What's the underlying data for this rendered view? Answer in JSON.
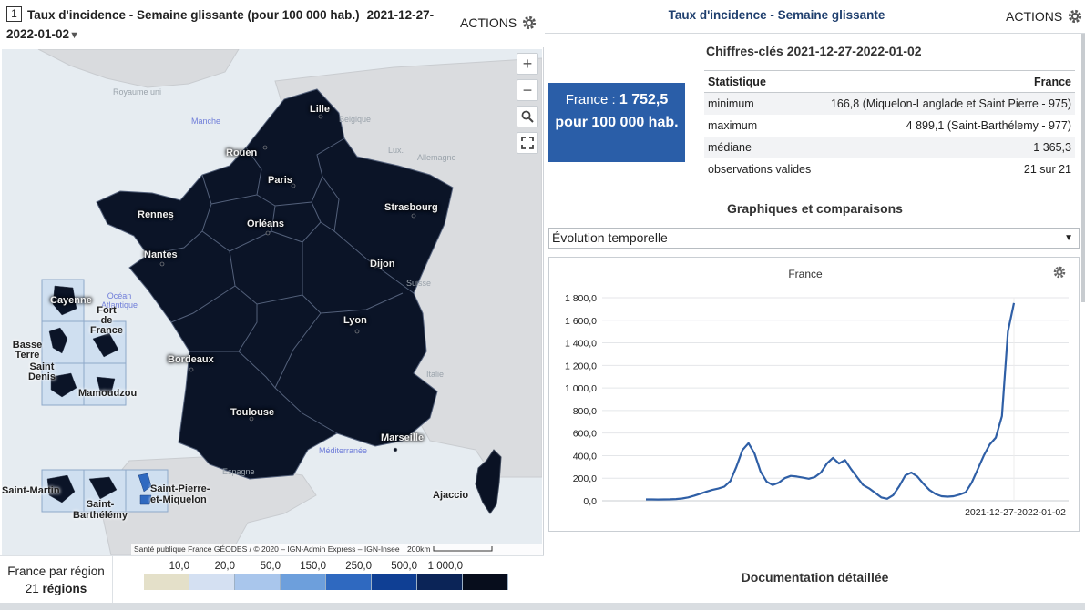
{
  "map_panel": {
    "number": "1",
    "title": "Taux d'incidence - Semaine glissante (pour 100 000 hab.)",
    "period_part1": "2021-12-27-",
    "period_part2": "2022-01-02",
    "period_arrow": "▼",
    "actions_label": "ACTIONS",
    "zoom_in": "+",
    "zoom_out": "−",
    "search_icon": "search-icon",
    "fullscreen_icon": "fullscreen-icon",
    "attribution": "Santé publique France GÉODES / © 2020 – IGN-Admin Express – IGN-Insee",
    "scale_label": "200km",
    "cities": {
      "lille": "Lille",
      "rouen": "Rouen",
      "paris": "Paris",
      "strasbourg": "Strasbourg",
      "rennes": "Rennes",
      "orleans": "Orléans",
      "nantes": "Nantes",
      "dijon": "Dijon",
      "lyon": "Lyon",
      "bordeaux": "Bordeaux",
      "toulouse": "Toulouse",
      "marseille": "Marseille",
      "ajaccio": "Ajaccio",
      "cayenne": "Cayenne",
      "fort_de_france": "Fort\nde\nFrance",
      "basse_terre": "Basse\nTerre",
      "saint_denis": "Saint\nDenis",
      "mamoudzou": "Mamoudzou",
      "saint_martin": "Saint-Martin",
      "saint_barthelemy": "Saint-\nBarthélémy",
      "saint_pierre": "Saint-Pierre-\net-Miquelon"
    },
    "geo_labels": {
      "royaume_uni": "Royaume uni",
      "belgique": "Belgique",
      "lux": "Lux.",
      "allemagne": "Allemagne",
      "suisse": "Suisse",
      "italie": "Italie",
      "espagne": "Espagne"
    },
    "sea_labels": {
      "manche": "Manche",
      "ocean": "Océan\nAtlantique",
      "mediterranee": "Méditerranée"
    },
    "legend": {
      "title": "France par région",
      "count": "21",
      "count_unit": "régions",
      "ticks": [
        "10,0",
        "20,0",
        "50,0",
        "150,0",
        "250,0",
        "500,0",
        "1 000,0"
      ],
      "colors": [
        "#e4e0c9",
        "#d4e0f2",
        "#a9c6ec",
        "#6d9fdc",
        "#2f69c0",
        "#0f3f94",
        "#0b2457",
        "#070d1c"
      ]
    }
  },
  "right_panel": {
    "title": "Taux d'incidence - Semaine glissante",
    "actions_label": "ACTIONS",
    "key_figures_title": "Chiffres-clés 2021-12-27-2022-01-02",
    "headline": {
      "prefix": "France : ",
      "value": "1 752,5",
      "unit": "pour 100 000 hab."
    },
    "stats": {
      "header": [
        "Statistique",
        "France"
      ],
      "rows": [
        {
          "label": "minimum",
          "value": "166,8 (Miquelon-Langlade et Saint Pierre - 975)"
        },
        {
          "label": "maximum",
          "value": "4 899,1 (Saint-Barthélemy - 977)"
        },
        {
          "label": "médiane",
          "value": "1 365,3"
        },
        {
          "label": "observations valides",
          "value": "21 sur 21"
        }
      ]
    },
    "graphs_title": "Graphiques et comparaisons",
    "select_value": "Évolution temporelle",
    "documentation_title": "Documentation détaillée"
  },
  "chart_data": {
    "type": "line",
    "title": "France",
    "x_label_end": "2021-12-27-2022-01-02",
    "ylim": [
      0,
      1800
    ],
    "yticks": [
      "0,0",
      "200,0",
      "400,0",
      "600,0",
      "800,0",
      "1 000,0",
      "1 200,0",
      "1 400,0",
      "1 600,0",
      "1 800,0"
    ],
    "series": [
      {
        "name": "France",
        "color": "#2f5fa6",
        "values": [
          12,
          12,
          11,
          12,
          13,
          15,
          20,
          30,
          45,
          62,
          80,
          96,
          108,
          125,
          175,
          300,
          450,
          510,
          420,
          260,
          170,
          140,
          160,
          200,
          220,
          215,
          205,
          195,
          210,
          250,
          330,
          380,
          330,
          360,
          280,
          210,
          140,
          110,
          70,
          30,
          18,
          50,
          130,
          225,
          250,
          215,
          150,
          95,
          60,
          40,
          36,
          40,
          55,
          75,
          160,
          280,
          400,
          500,
          560,
          750,
          1500,
          1752
        ]
      }
    ]
  }
}
